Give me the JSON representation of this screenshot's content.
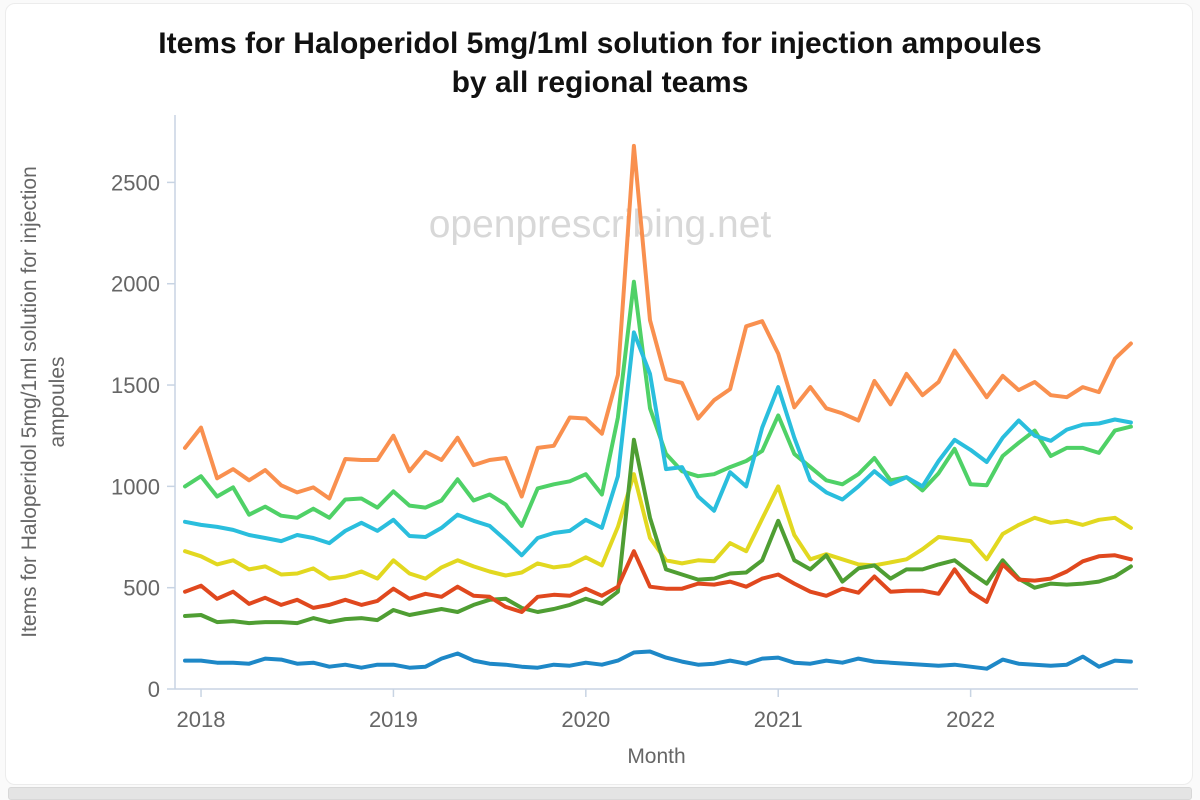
{
  "page": {
    "watermark": "openprescribing.net"
  },
  "header": {
    "title_line1": "Items for Haloperidol 5mg/1ml solution for injection ampoules",
    "title_line2": "by all regional teams"
  },
  "chart_data": {
    "type": "line",
    "title": "Items for Haloperidol 5mg/1ml solution for injection ampoules by all regional teams",
    "xlabel": "Month",
    "ylabel": "Items for Haloperidol 5mg/1ml solution for injection ampoules",
    "x_start": "2017-12",
    "x_end": "2022-11",
    "x_interval": "monthly",
    "points_per_series": 60,
    "ylim": [
      0,
      2780
    ],
    "grid": false,
    "legend": "none",
    "axis_color": "#c8d4e3",
    "tick_label_color": "#666666",
    "watermark_color": "#d8d8d8",
    "y_ticks": [
      0,
      500,
      1000,
      1500,
      2000,
      2500
    ],
    "x_ticks": [
      {
        "label": "2018",
        "month_index": 1
      },
      {
        "label": "2019",
        "month_index": 13
      },
      {
        "label": "2020",
        "month_index": 25
      },
      {
        "label": "2021",
        "month_index": 37
      },
      {
        "label": "2022",
        "month_index": 49
      }
    ],
    "series": [
      {
        "id": "orange-line",
        "color": "#f9904f",
        "values": [
          1190,
          1290,
          1040,
          1085,
          1030,
          1080,
          1005,
          970,
          995,
          940,
          1135,
          1130,
          1130,
          1250,
          1075,
          1170,
          1130,
          1240,
          1105,
          1130,
          1140,
          950,
          1190,
          1200,
          1340,
          1335,
          1260,
          1550,
          2680,
          1820,
          1530,
          1510,
          1335,
          1425,
          1480,
          1790,
          1815,
          1655,
          1390,
          1490,
          1385,
          1360,
          1325,
          1520,
          1405,
          1555,
          1450,
          1515,
          1670,
          1555,
          1440,
          1545,
          1475,
          1515,
          1450,
          1440,
          1490,
          1465,
          1630,
          1705
        ]
      },
      {
        "id": "light-green-line",
        "color": "#4fd167",
        "values": [
          1000,
          1050,
          950,
          995,
          860,
          900,
          855,
          845,
          890,
          845,
          935,
          940,
          895,
          975,
          905,
          895,
          930,
          1035,
          930,
          960,
          910,
          805,
          990,
          1010,
          1025,
          1060,
          960,
          1340,
          2010,
          1385,
          1160,
          1075,
          1050,
          1060,
          1095,
          1125,
          1175,
          1350,
          1160,
          1095,
          1030,
          1010,
          1060,
          1140,
          1030,
          1045,
          980,
          1065,
          1185,
          1010,
          1005,
          1150,
          1215,
          1275,
          1150,
          1190,
          1190,
          1165,
          1275,
          1295
        ]
      },
      {
        "id": "cyan-line",
        "color": "#2abedd",
        "values": [
          825,
          810,
          800,
          785,
          760,
          745,
          730,
          760,
          745,
          720,
          780,
          820,
          780,
          835,
          755,
          750,
          795,
          860,
          830,
          805,
          735,
          660,
          745,
          770,
          780,
          835,
          795,
          1050,
          1760,
          1555,
          1085,
          1095,
          950,
          880,
          1070,
          1000,
          1290,
          1490,
          1240,
          1030,
          970,
          935,
          1000,
          1075,
          1010,
          1045,
          1000,
          1125,
          1230,
          1180,
          1120,
          1240,
          1325,
          1250,
          1225,
          1280,
          1305,
          1310,
          1330,
          1315
        ]
      },
      {
        "id": "yellow-line",
        "color": "#e2d820",
        "values": [
          680,
          655,
          615,
          635,
          590,
          605,
          565,
          570,
          595,
          545,
          555,
          580,
          545,
          635,
          570,
          545,
          600,
          635,
          605,
          580,
          560,
          575,
          620,
          600,
          610,
          650,
          610,
          800,
          1060,
          745,
          635,
          620,
          635,
          630,
          720,
          680,
          840,
          1000,
          760,
          640,
          665,
          640,
          615,
          610,
          625,
          640,
          690,
          750,
          740,
          730,
          640,
          765,
          810,
          845,
          820,
          830,
          810,
          835,
          845,
          795
        ]
      },
      {
        "id": "dark-green-line",
        "color": "#4f9e33",
        "values": [
          360,
          365,
          330,
          335,
          325,
          330,
          330,
          325,
          350,
          330,
          345,
          350,
          340,
          390,
          365,
          380,
          395,
          380,
          415,
          440,
          445,
          400,
          380,
          395,
          415,
          445,
          420,
          480,
          1230,
          845,
          590,
          565,
          540,
          545,
          570,
          575,
          635,
          830,
          635,
          590,
          660,
          530,
          595,
          610,
          545,
          590,
          590,
          615,
          635,
          575,
          520,
          635,
          545,
          500,
          520,
          515,
          520,
          530,
          555,
          605
        ]
      },
      {
        "id": "red-line",
        "color": "#e0481e",
        "values": [
          480,
          510,
          445,
          480,
          420,
          450,
          415,
          440,
          400,
          415,
          440,
          415,
          435,
          495,
          445,
          470,
          455,
          505,
          460,
          455,
          405,
          380,
          455,
          465,
          460,
          495,
          460,
          505,
          680,
          505,
          495,
          495,
          520,
          515,
          530,
          505,
          545,
          565,
          520,
          480,
          460,
          495,
          475,
          555,
          480,
          485,
          485,
          470,
          590,
          480,
          430,
          615,
          540,
          535,
          545,
          580,
          630,
          655,
          660,
          640
        ]
      },
      {
        "id": "blue-line",
        "color": "#1e88c7",
        "values": [
          140,
          140,
          130,
          130,
          125,
          150,
          145,
          125,
          130,
          110,
          120,
          105,
          120,
          120,
          105,
          110,
          150,
          175,
          140,
          125,
          120,
          110,
          105,
          120,
          115,
          130,
          120,
          140,
          180,
          185,
          155,
          135,
          120,
          125,
          140,
          125,
          150,
          155,
          130,
          125,
          140,
          130,
          150,
          135,
          130,
          125,
          120,
          115,
          120,
          110,
          100,
          145,
          125,
          120,
          115,
          120,
          160,
          110,
          140,
          135
        ]
      }
    ]
  }
}
